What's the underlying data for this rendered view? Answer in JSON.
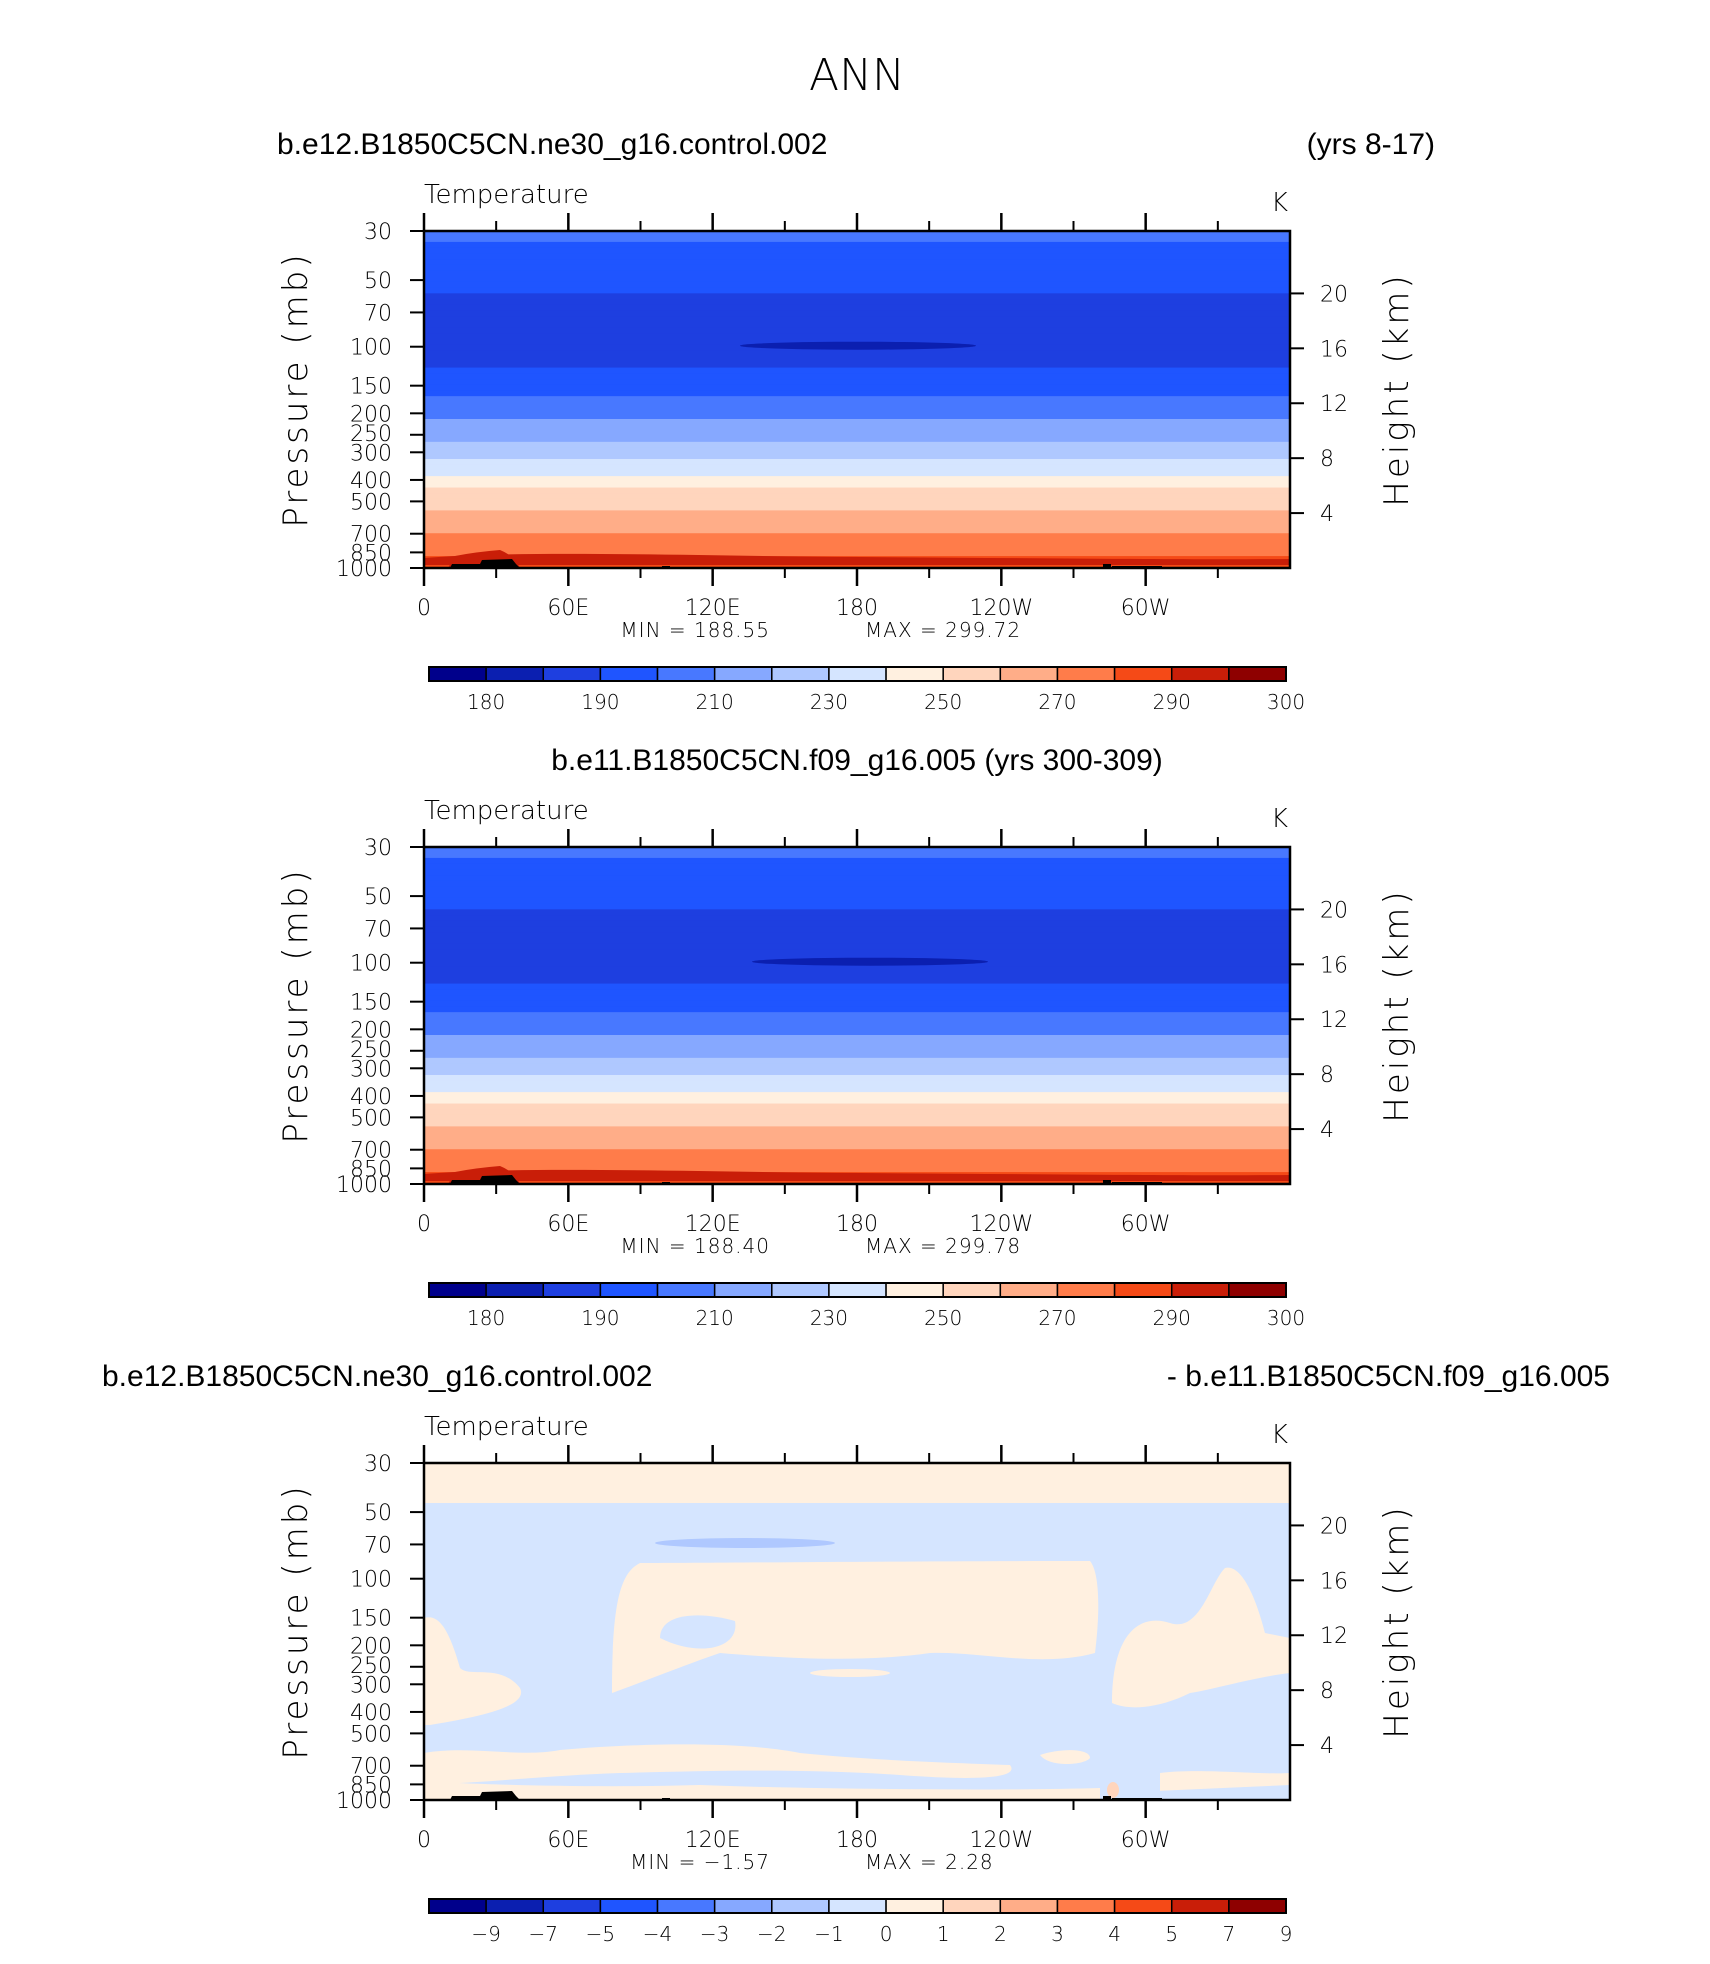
{
  "figure": {
    "season": "ANN",
    "panel_heading_left": "b.e12.B1850C5CN.ne30_g16.control.002",
    "panel_heading_right": "(yrs 8-17)",
    "panel2_heading": "b.e11.B1850C5CN.f09_g16.005 (yrs 300-309)",
    "panel3_heading_left": "b.e12.B1850C5CN.ne30_g16.control.002",
    "panel3_heading_right": "- b.e11.B1850C5CN.f09_g16.005"
  },
  "chart_data": [
    {
      "type": "heatmap",
      "variable": "Temperature",
      "units": "K",
      "case": "b.e12.B1850C5CN.ne30_g16.control.002",
      "years": "(yrs 8-17)",
      "ylabel": "Pressure (mb)",
      "y2label": "Height (km)",
      "x_ticks": [
        "0",
        "60E",
        "120E",
        "180",
        "120W",
        "60W"
      ],
      "x_range_deg": [
        0,
        360
      ],
      "pressure_ticks": [
        30,
        50,
        70,
        100,
        150,
        200,
        250,
        300,
        400,
        500,
        700,
        850,
        1000
      ],
      "height_ticks": [
        4,
        8,
        12,
        16,
        20
      ],
      "min_label": "MIN = 188.55",
      "max_label": "MAX = 299.72",
      "min": 188.55,
      "max": 299.72,
      "colorbar_levels": [
        "180",
        "185",
        "190",
        "200",
        "210",
        "220",
        "230",
        "240",
        "250",
        "260",
        "270",
        "280",
        "290",
        "295",
        "300"
      ],
      "colorbar_tick_labels": [
        "180",
        "190",
        "210",
        "230",
        "250",
        "270",
        "290",
        "300"
      ],
      "profile_p_mb": [
        30,
        45,
        70,
        100,
        150,
        200,
        250,
        300,
        400,
        500,
        700,
        850,
        1000
      ],
      "profile_T_K": [
        212,
        206,
        196,
        192,
        205,
        218,
        227,
        236,
        254,
        266,
        279,
        288,
        294
      ],
      "cold_core_T_K": 188.55
    },
    {
      "type": "heatmap",
      "variable": "Temperature",
      "units": "K",
      "case": "b.e11.B1850C5CN.f09_g16.005",
      "years": "(yrs 300-309)",
      "ylabel": "Pressure (mb)",
      "y2label": "Height (km)",
      "x_ticks": [
        "0",
        "60E",
        "120E",
        "180",
        "120W",
        "60W"
      ],
      "x_range_deg": [
        0,
        360
      ],
      "pressure_ticks": [
        30,
        50,
        70,
        100,
        150,
        200,
        250,
        300,
        400,
        500,
        700,
        850,
        1000
      ],
      "height_ticks": [
        4,
        8,
        12,
        16,
        20
      ],
      "min_label": "MIN = 188.40",
      "max_label": "MAX = 299.78",
      "min": 188.4,
      "max": 299.78,
      "colorbar_levels": [
        "180",
        "185",
        "190",
        "200",
        "210",
        "220",
        "230",
        "240",
        "250",
        "260",
        "270",
        "280",
        "290",
        "295",
        "300"
      ],
      "colorbar_tick_labels": [
        "180",
        "190",
        "210",
        "230",
        "250",
        "270",
        "290",
        "300"
      ],
      "profile_p_mb": [
        30,
        45,
        70,
        100,
        150,
        200,
        250,
        300,
        400,
        500,
        700,
        850,
        1000
      ],
      "profile_T_K": [
        212,
        206,
        196,
        192,
        205,
        218,
        227,
        236,
        254,
        266,
        279,
        288,
        294
      ],
      "cold_core_T_K": 188.4
    },
    {
      "type": "heatmap",
      "variable": "Temperature",
      "units": "K",
      "case": "b.e12.B1850C5CN.ne30_g16.control.002 - b.e11.B1850C5CN.f09_g16.005",
      "ylabel": "Pressure (mb)",
      "y2label": "Height (km)",
      "x_ticks": [
        "0",
        "60E",
        "120E",
        "180",
        "120W",
        "60W"
      ],
      "x_range_deg": [
        0,
        360
      ],
      "pressure_ticks": [
        30,
        50,
        70,
        100,
        150,
        200,
        250,
        300,
        400,
        500,
        700,
        850,
        1000
      ],
      "height_ticks": [
        4,
        8,
        12,
        16,
        20
      ],
      "min_label": "MIN = −1.57",
      "max_label": "MAX = 2.28",
      "min": -1.57,
      "max": 2.28,
      "colorbar_levels": [
        "-9",
        "-7",
        "-5",
        "-4",
        "-3",
        "-2",
        "-1",
        "0",
        "1",
        "2",
        "3",
        "4",
        "5",
        "7",
        "9"
      ],
      "colorbar_tick_labels": [
        "−9",
        "−7",
        "−5",
        "−4",
        "−3",
        "−2",
        "−1",
        "0",
        "1",
        "2",
        "3",
        "4",
        "5",
        "7",
        "9"
      ],
      "top_layer_value_K": 0.5,
      "background_value_K": -0.5,
      "warm_regions_description": "upper troposphere 100-300 mb between ~90E and ~95W; lower troposphere bands near 600-800 mb"
    }
  ],
  "colors": {
    "scale": [
      "#00008b",
      "#0b1fb0",
      "#1e3fe0",
      "#1f55ff",
      "#4878ff",
      "#86a8ff",
      "#afc8ff",
      "#d5e5ff",
      "#fff0e0",
      "#ffd5bd",
      "#ffad88",
      "#ff7c4a",
      "#f54a17",
      "#c91e08",
      "#8e0000"
    ],
    "land": "#000000"
  }
}
